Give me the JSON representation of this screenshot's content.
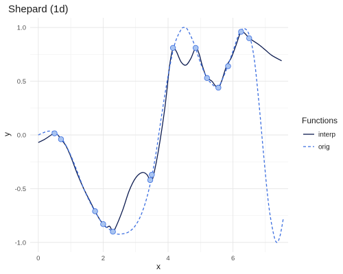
{
  "chart_data": {
    "type": "line",
    "title": "Shepard (1d)",
    "xlabel": "x",
    "ylabel": "y",
    "xlim": [
      -0.25,
      7.7
    ],
    "ylim": [
      -1.09,
      1.09
    ],
    "x_ticks": [
      0,
      2,
      4,
      6
    ],
    "x_tick_labels": [
      "0",
      "2",
      "4",
      "6"
    ],
    "y_ticks": [
      -1.0,
      -0.5,
      0.0,
      0.5,
      1.0
    ],
    "y_tick_labels": [
      "-1.0",
      "-0.5",
      "0.0",
      "0.5",
      "1.0"
    ],
    "grid": true,
    "legend_position": "right",
    "legend_title": "Functions",
    "series": [
      {
        "name": "interp",
        "style": "solid",
        "color": "#0b1a4f",
        "points": [
          [
            0,
            -0.07
          ],
          [
            0.2,
            -0.04
          ],
          [
            0.4,
            0.0
          ],
          [
            0.5,
            0.015
          ],
          [
            0.6,
            0.0
          ],
          [
            0.7,
            -0.04
          ],
          [
            0.85,
            -0.1
          ],
          [
            1.0,
            -0.2
          ],
          [
            1.2,
            -0.36
          ],
          [
            1.4,
            -0.5
          ],
          [
            1.6,
            -0.62
          ],
          [
            1.75,
            -0.71
          ],
          [
            1.9,
            -0.79
          ],
          [
            2.0,
            -0.83
          ],
          [
            2.1,
            -0.86
          ],
          [
            2.2,
            -0.85
          ],
          [
            2.3,
            -0.9
          ],
          [
            2.4,
            -0.85
          ],
          [
            2.6,
            -0.7
          ],
          [
            2.8,
            -0.52
          ],
          [
            3.0,
            -0.4
          ],
          [
            3.2,
            -0.35
          ],
          [
            3.35,
            -0.37
          ],
          [
            3.45,
            -0.43
          ],
          [
            3.5,
            -0.42
          ],
          [
            3.55,
            -0.38
          ],
          [
            3.7,
            -0.15
          ],
          [
            3.9,
            0.25
          ],
          [
            4.05,
            0.65
          ],
          [
            4.15,
            0.8
          ],
          [
            4.25,
            0.78
          ],
          [
            4.4,
            0.68
          ],
          [
            4.55,
            0.65
          ],
          [
            4.7,
            0.71
          ],
          [
            4.85,
            0.81
          ],
          [
            4.95,
            0.76
          ],
          [
            5.05,
            0.65
          ],
          [
            5.15,
            0.56
          ],
          [
            5.2,
            0.53
          ],
          [
            5.35,
            0.5
          ],
          [
            5.45,
            0.46
          ],
          [
            5.55,
            0.44
          ],
          [
            5.65,
            0.5
          ],
          [
            5.8,
            0.64
          ],
          [
            5.95,
            0.72
          ],
          [
            6.1,
            0.84
          ],
          [
            6.2,
            0.93
          ],
          [
            6.25,
            0.96
          ],
          [
            6.35,
            0.95
          ],
          [
            6.5,
            0.9
          ],
          [
            6.6,
            0.88
          ],
          [
            6.8,
            0.84
          ],
          [
            7.0,
            0.79
          ],
          [
            7.2,
            0.74
          ],
          [
            7.5,
            0.69
          ]
        ]
      },
      {
        "name": "orig",
        "style": "dashed",
        "color": "#3b6ee0",
        "points": [
          [
            0,
            0.0
          ],
          [
            0.15,
            0.02
          ],
          [
            0.3,
            0.035
          ],
          [
            0.45,
            0.03
          ],
          [
            0.6,
            0.0
          ],
          [
            0.8,
            -0.07
          ],
          [
            1.0,
            -0.19
          ],
          [
            1.2,
            -0.34
          ],
          [
            1.4,
            -0.5
          ],
          [
            1.6,
            -0.63
          ],
          [
            1.8,
            -0.74
          ],
          [
            2.0,
            -0.83
          ],
          [
            2.2,
            -0.88
          ],
          [
            2.4,
            -0.92
          ],
          [
            2.6,
            -0.92
          ],
          [
            2.8,
            -0.9
          ],
          [
            3.0,
            -0.84
          ],
          [
            3.2,
            -0.72
          ],
          [
            3.4,
            -0.52
          ],
          [
            3.6,
            -0.22
          ],
          [
            3.8,
            0.18
          ],
          [
            4.0,
            0.55
          ],
          [
            4.2,
            0.84
          ],
          [
            4.4,
            0.98
          ],
          [
            4.5,
            1.0
          ],
          [
            4.6,
            0.98
          ],
          [
            4.8,
            0.85
          ],
          [
            5.0,
            0.67
          ],
          [
            5.2,
            0.53
          ],
          [
            5.4,
            0.46
          ],
          [
            5.5,
            0.45
          ],
          [
            5.6,
            0.47
          ],
          [
            5.8,
            0.61
          ],
          [
            6.0,
            0.78
          ],
          [
            6.2,
            0.95
          ],
          [
            6.35,
            0.99
          ],
          [
            6.5,
            0.93
          ],
          [
            6.65,
            0.72
          ],
          [
            6.8,
            0.3
          ],
          [
            6.95,
            -0.2
          ],
          [
            7.1,
            -0.65
          ],
          [
            7.25,
            -0.92
          ],
          [
            7.35,
            -1.0
          ],
          [
            7.45,
            -0.94
          ],
          [
            7.55,
            -0.78
          ]
        ]
      }
    ],
    "points_series": {
      "name": "data",
      "fill": "#a9c4f0",
      "stroke": "#3b6ee0",
      "points": [
        [
          0.5,
          0.015
        ],
        [
          0.7,
          -0.04
        ],
        [
          1.75,
          -0.71
        ],
        [
          2.0,
          -0.83
        ],
        [
          2.3,
          -0.9
        ],
        [
          3.45,
          -0.42
        ],
        [
          3.5,
          -0.37
        ],
        [
          4.15,
          0.81
        ],
        [
          4.85,
          0.81
        ],
        [
          5.2,
          0.53
        ],
        [
          5.55,
          0.44
        ],
        [
          5.85,
          0.64
        ],
        [
          6.25,
          0.96
        ],
        [
          6.5,
          0.9
        ]
      ]
    }
  }
}
